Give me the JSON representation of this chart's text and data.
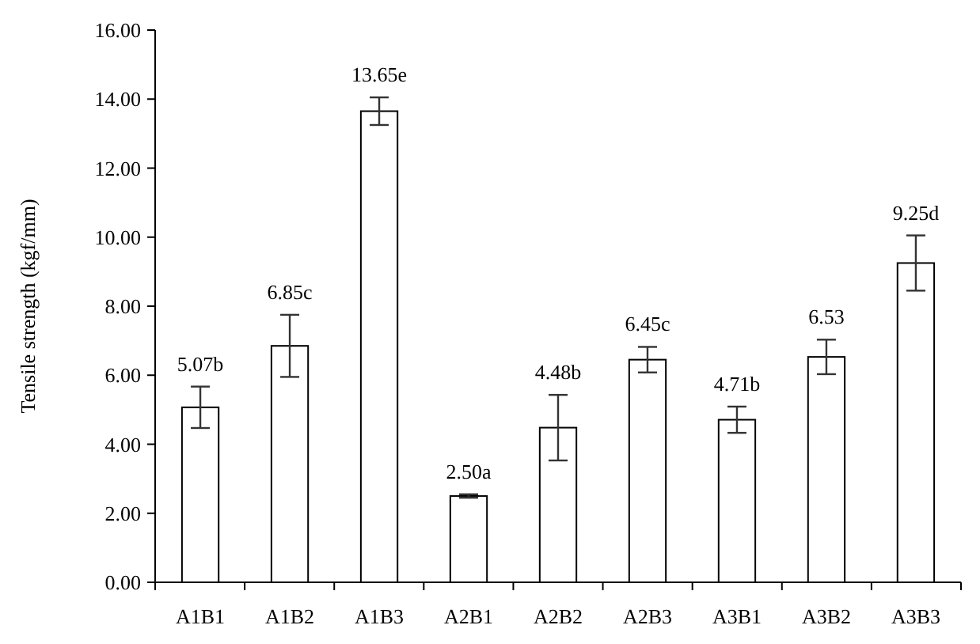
{
  "chart_data": {
    "type": "bar",
    "ylabel": "Tensile strength  (kgf/mm)",
    "categories": [
      "A1B1",
      "A1B2",
      "A1B3",
      "A2B1",
      "A2B2",
      "A2B3",
      "A3B1",
      "A3B2",
      "A3B3"
    ],
    "values": [
      5.07,
      6.85,
      13.65,
      2.5,
      4.48,
      6.45,
      4.71,
      6.53,
      9.25
    ],
    "errors": [
      0.6,
      0.9,
      0.4,
      0.05,
      0.95,
      0.37,
      0.38,
      0.5,
      0.8
    ],
    "value_labels": [
      "5.07b",
      "6.85c",
      "13.65e",
      "2.50a",
      "4.48b",
      "6.45c",
      "4.71b",
      "6.53",
      "9.25d"
    ],
    "color": "#ffffff",
    "ylim": [
      0,
      16
    ],
    "yticks": [
      {
        "value": 0,
        "label": "0.00"
      },
      {
        "value": 2,
        "label": "2.00"
      },
      {
        "value": 4,
        "label": "4.00"
      },
      {
        "value": 6,
        "label": "6.00"
      },
      {
        "value": 8,
        "label": "8.00"
      },
      {
        "value": 10,
        "label": "10.00"
      },
      {
        "value": 12,
        "label": "12.00"
      },
      {
        "value": 14,
        "label": "14.00"
      },
      {
        "value": 16,
        "label": "16.00"
      }
    ],
    "grid": false
  }
}
